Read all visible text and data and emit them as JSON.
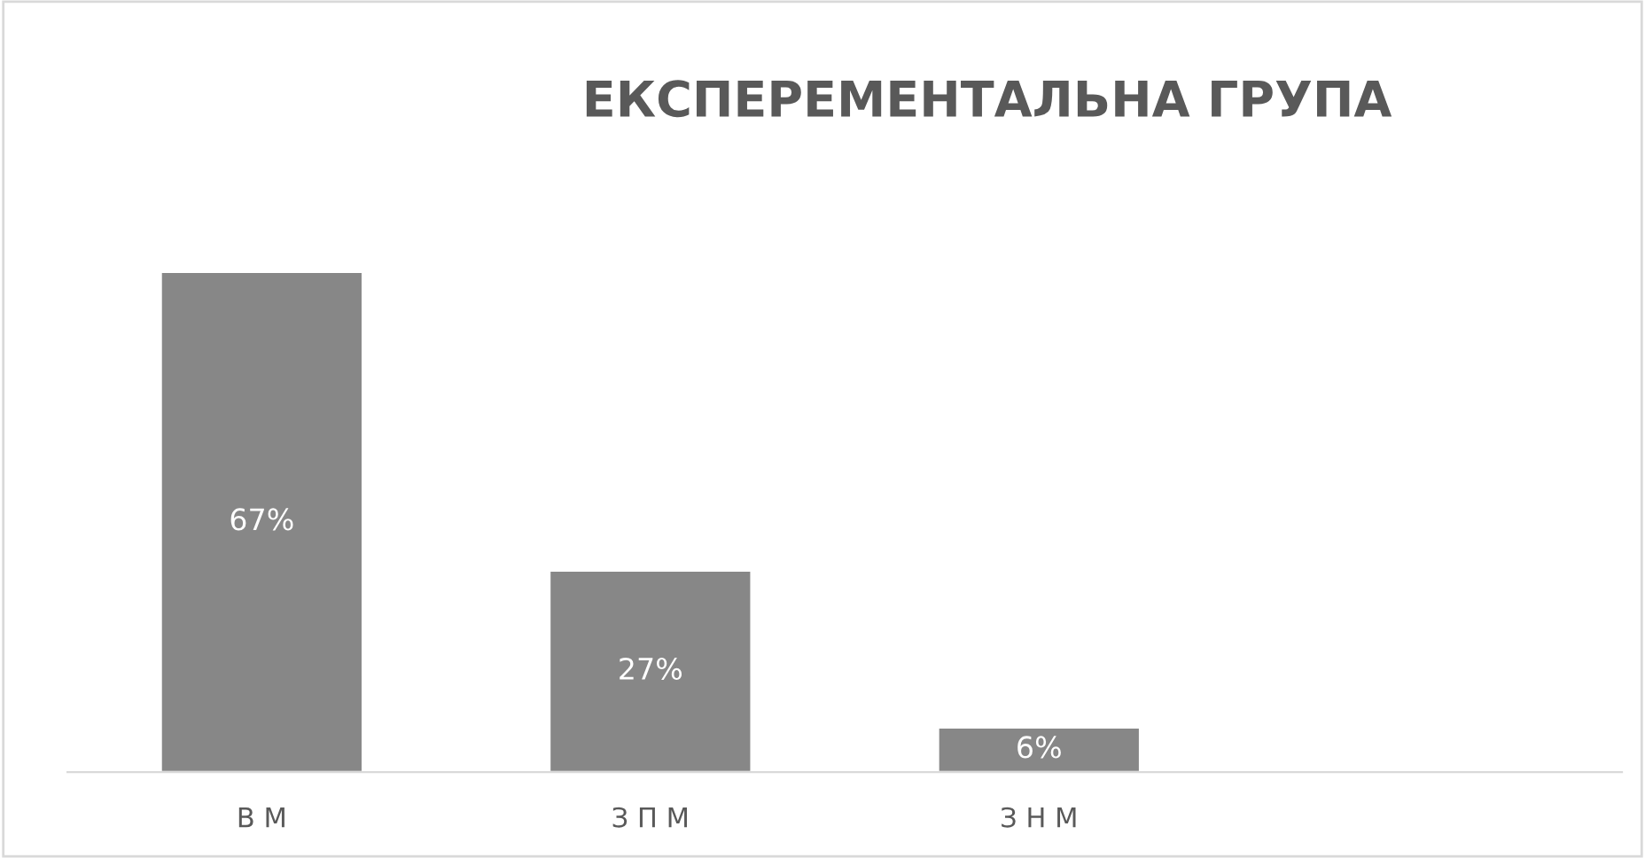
{
  "chart_data": {
    "type": "bar",
    "title": "ЕКСПЕРЕМЕНТАЛЬНА ГРУПА",
    "categories": [
      "В М",
      "З П М",
      "З Н М",
      null
    ],
    "values": [
      67,
      27,
      6,
      null
    ],
    "value_labels": [
      "67%",
      "27%",
      "6%",
      null
    ],
    "color": "#878787",
    "grid": false,
    "legend": false
  }
}
